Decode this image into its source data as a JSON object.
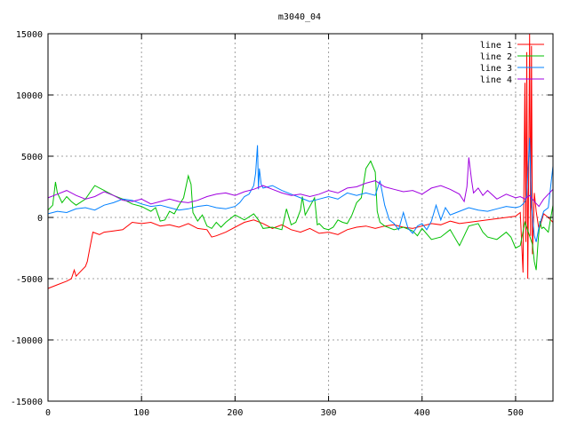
{
  "chart_data": {
    "type": "line",
    "title": "m3040_04",
    "xlabel": "",
    "ylabel": "",
    "xlim": [
      0,
      540
    ],
    "ylim": [
      -15000,
      15000
    ],
    "xticks": [
      0,
      100,
      200,
      300,
      400,
      500
    ],
    "yticks": [
      -15000,
      -10000,
      -5000,
      0,
      5000,
      10000,
      15000
    ],
    "grid": true,
    "legend_position": "top-right",
    "series": [
      {
        "name": "line 1",
        "color": "#ff0000",
        "points": [
          [
            0,
            -5800
          ],
          [
            10,
            -5500
          ],
          [
            20,
            -5200
          ],
          [
            25,
            -5000
          ],
          [
            28,
            -4300
          ],
          [
            30,
            -4800
          ],
          [
            35,
            -4400
          ],
          [
            40,
            -4000
          ],
          [
            42,
            -3600
          ],
          [
            45,
            -2400
          ],
          [
            48,
            -1200
          ],
          [
            55,
            -1400
          ],
          [
            60,
            -1200
          ],
          [
            70,
            -1100
          ],
          [
            80,
            -1000
          ],
          [
            90,
            -400
          ],
          [
            100,
            -500
          ],
          [
            110,
            -400
          ],
          [
            120,
            -700
          ],
          [
            130,
            -600
          ],
          [
            140,
            -800
          ],
          [
            150,
            -500
          ],
          [
            160,
            -900
          ],
          [
            170,
            -1000
          ],
          [
            175,
            -1600
          ],
          [
            180,
            -1500
          ],
          [
            190,
            -1200
          ],
          [
            200,
            -800
          ],
          [
            210,
            -400
          ],
          [
            220,
            -200
          ],
          [
            230,
            -500
          ],
          [
            240,
            -900
          ],
          [
            250,
            -600
          ],
          [
            260,
            -1000
          ],
          [
            270,
            -1200
          ],
          [
            280,
            -900
          ],
          [
            290,
            -1300
          ],
          [
            300,
            -1200
          ],
          [
            310,
            -1400
          ],
          [
            320,
            -1000
          ],
          [
            330,
            -800
          ],
          [
            340,
            -700
          ],
          [
            350,
            -900
          ],
          [
            360,
            -700
          ],
          [
            370,
            -600
          ],
          [
            380,
            -800
          ],
          [
            390,
            -900
          ],
          [
            400,
            -700
          ],
          [
            410,
            -500
          ],
          [
            420,
            -600
          ],
          [
            430,
            -300
          ],
          [
            440,
            -500
          ],
          [
            450,
            -400
          ],
          [
            460,
            -300
          ],
          [
            470,
            -200
          ],
          [
            480,
            -100
          ],
          [
            490,
            0
          ],
          [
            500,
            100
          ],
          [
            505,
            400
          ],
          [
            508,
            -4500
          ],
          [
            510,
            11000
          ],
          [
            511,
            -2000
          ],
          [
            512,
            13500
          ],
          [
            513,
            -5000
          ],
          [
            514,
            4000
          ],
          [
            515,
            15000
          ],
          [
            516,
            -1500
          ],
          [
            517,
            14000
          ],
          [
            518,
            -3000
          ],
          [
            520,
            2000
          ],
          [
            522,
            500
          ],
          [
            525,
            -1000
          ],
          [
            530,
            300
          ],
          [
            535,
            0
          ],
          [
            540,
            -400
          ]
        ]
      },
      {
        "name": "line 2",
        "color": "#00c000",
        "points": [
          [
            0,
            600
          ],
          [
            5,
            1000
          ],
          [
            8,
            2900
          ],
          [
            10,
            2000
          ],
          [
            15,
            1200
          ],
          [
            20,
            1700
          ],
          [
            25,
            1300
          ],
          [
            30,
            1000
          ],
          [
            40,
            1500
          ],
          [
            50,
            2600
          ],
          [
            60,
            2200
          ],
          [
            70,
            1800
          ],
          [
            80,
            1500
          ],
          [
            90,
            1100
          ],
          [
            100,
            900
          ],
          [
            110,
            500
          ],
          [
            115,
            800
          ],
          [
            120,
            -300
          ],
          [
            125,
            -200
          ],
          [
            130,
            500
          ],
          [
            135,
            300
          ],
          [
            140,
            1000
          ],
          [
            145,
            1600
          ],
          [
            150,
            3400
          ],
          [
            153,
            2700
          ],
          [
            155,
            400
          ],
          [
            160,
            -300
          ],
          [
            165,
            200
          ],
          [
            170,
            -700
          ],
          [
            175,
            -900
          ],
          [
            180,
            -400
          ],
          [
            185,
            -800
          ],
          [
            190,
            -400
          ],
          [
            200,
            200
          ],
          [
            210,
            -200
          ],
          [
            220,
            300
          ],
          [
            225,
            -200
          ],
          [
            230,
            -900
          ],
          [
            240,
            -800
          ],
          [
            250,
            -1000
          ],
          [
            255,
            700
          ],
          [
            260,
            -600
          ],
          [
            265,
            -400
          ],
          [
            270,
            600
          ],
          [
            272,
            1700
          ],
          [
            275,
            200
          ],
          [
            280,
            900
          ],
          [
            285,
            1600
          ],
          [
            288,
            -600
          ],
          [
            290,
            -500
          ],
          [
            295,
            -900
          ],
          [
            300,
            -1000
          ],
          [
            305,
            -800
          ],
          [
            310,
            -200
          ],
          [
            315,
            -400
          ],
          [
            320,
            -500
          ],
          [
            325,
            200
          ],
          [
            330,
            1200
          ],
          [
            335,
            1600
          ],
          [
            340,
            4000
          ],
          [
            345,
            4600
          ],
          [
            350,
            3700
          ],
          [
            352,
            500
          ],
          [
            355,
            -400
          ],
          [
            360,
            -700
          ],
          [
            370,
            -1000
          ],
          [
            380,
            -800
          ],
          [
            390,
            -1100
          ],
          [
            395,
            -1500
          ],
          [
            400,
            -900
          ],
          [
            410,
            -1800
          ],
          [
            420,
            -1600
          ],
          [
            430,
            -1000
          ],
          [
            440,
            -2300
          ],
          [
            445,
            -1500
          ],
          [
            450,
            -700
          ],
          [
            455,
            -600
          ],
          [
            460,
            -500
          ],
          [
            465,
            -1200
          ],
          [
            470,
            -1600
          ],
          [
            480,
            -1800
          ],
          [
            490,
            -1200
          ],
          [
            495,
            -1600
          ],
          [
            500,
            -2500
          ],
          [
            505,
            -2300
          ],
          [
            510,
            -400
          ],
          [
            515,
            -1500
          ],
          [
            518,
            -2200
          ],
          [
            520,
            -3600
          ],
          [
            522,
            -4300
          ],
          [
            524,
            -2000
          ],
          [
            526,
            -300
          ],
          [
            528,
            -900
          ],
          [
            530,
            -800
          ],
          [
            535,
            -1200
          ],
          [
            540,
            1000
          ]
        ]
      },
      {
        "name": "line 3",
        "color": "#0080ff",
        "points": [
          [
            0,
            300
          ],
          [
            10,
            500
          ],
          [
            20,
            400
          ],
          [
            30,
            700
          ],
          [
            40,
            800
          ],
          [
            50,
            600
          ],
          [
            60,
            1000
          ],
          [
            70,
            1200
          ],
          [
            80,
            1500
          ],
          [
            90,
            1400
          ],
          [
            100,
            1100
          ],
          [
            110,
            900
          ],
          [
            120,
            1000
          ],
          [
            130,
            800
          ],
          [
            140,
            600
          ],
          [
            150,
            700
          ],
          [
            160,
            900
          ],
          [
            170,
            1000
          ],
          [
            180,
            800
          ],
          [
            190,
            700
          ],
          [
            200,
            900
          ],
          [
            205,
            1200
          ],
          [
            210,
            1700
          ],
          [
            215,
            1900
          ],
          [
            220,
            2600
          ],
          [
            222,
            3600
          ],
          [
            224,
            5900
          ],
          [
            225,
            2300
          ],
          [
            226,
            4000
          ],
          [
            228,
            2700
          ],
          [
            230,
            2400
          ],
          [
            240,
            2600
          ],
          [
            250,
            2200
          ],
          [
            260,
            1900
          ],
          [
            270,
            1600
          ],
          [
            280,
            1300
          ],
          [
            290,
            1500
          ],
          [
            300,
            1700
          ],
          [
            310,
            1500
          ],
          [
            320,
            2000
          ],
          [
            330,
            1800
          ],
          [
            340,
            2000
          ],
          [
            350,
            1800
          ],
          [
            355,
            3000
          ],
          [
            360,
            1000
          ],
          [
            365,
            -200
          ],
          [
            370,
            -500
          ],
          [
            375,
            -1000
          ],
          [
            380,
            400
          ],
          [
            385,
            -900
          ],
          [
            390,
            -1300
          ],
          [
            395,
            -700
          ],
          [
            400,
            -500
          ],
          [
            405,
            -1000
          ],
          [
            410,
            -300
          ],
          [
            415,
            1000
          ],
          [
            420,
            -200
          ],
          [
            425,
            800
          ],
          [
            430,
            200
          ],
          [
            440,
            500
          ],
          [
            450,
            800
          ],
          [
            460,
            600
          ],
          [
            470,
            500
          ],
          [
            480,
            700
          ],
          [
            490,
            900
          ],
          [
            500,
            800
          ],
          [
            505,
            900
          ],
          [
            508,
            1100
          ],
          [
            510,
            1300
          ],
          [
            512,
            1800
          ],
          [
            515,
            6500
          ],
          [
            517,
            1000
          ],
          [
            520,
            -1500
          ],
          [
            522,
            -2000
          ],
          [
            525,
            -800
          ],
          [
            530,
            500
          ],
          [
            535,
            800
          ],
          [
            540,
            4200
          ]
        ]
      },
      {
        "name": "line 4",
        "color": "#a000e0",
        "points": [
          [
            0,
            1600
          ],
          [
            10,
            1900
          ],
          [
            20,
            2200
          ],
          [
            30,
            1800
          ],
          [
            40,
            1500
          ],
          [
            50,
            1700
          ],
          [
            60,
            2100
          ],
          [
            70,
            1800
          ],
          [
            80,
            1400
          ],
          [
            90,
            1300
          ],
          [
            100,
            1500
          ],
          [
            110,
            1100
          ],
          [
            120,
            1300
          ],
          [
            130,
            1500
          ],
          [
            140,
            1300
          ],
          [
            150,
            1200
          ],
          [
            160,
            1400
          ],
          [
            170,
            1700
          ],
          [
            180,
            1900
          ],
          [
            190,
            2000
          ],
          [
            200,
            1800
          ],
          [
            210,
            2100
          ],
          [
            220,
            2300
          ],
          [
            230,
            2600
          ],
          [
            240,
            2300
          ],
          [
            250,
            2000
          ],
          [
            260,
            1800
          ],
          [
            270,
            1900
          ],
          [
            280,
            1700
          ],
          [
            290,
            1900
          ],
          [
            300,
            2200
          ],
          [
            310,
            2000
          ],
          [
            320,
            2400
          ],
          [
            330,
            2500
          ],
          [
            340,
            2800
          ],
          [
            350,
            3000
          ],
          [
            360,
            2500
          ],
          [
            370,
            2300
          ],
          [
            380,
            2100
          ],
          [
            390,
            2200
          ],
          [
            400,
            1900
          ],
          [
            410,
            2400
          ],
          [
            420,
            2600
          ],
          [
            430,
            2300
          ],
          [
            440,
            1900
          ],
          [
            445,
            1300
          ],
          [
            448,
            2500
          ],
          [
            450,
            4900
          ],
          [
            453,
            3000
          ],
          [
            455,
            2000
          ],
          [
            460,
            2400
          ],
          [
            465,
            1800
          ],
          [
            470,
            2200
          ],
          [
            480,
            1500
          ],
          [
            490,
            1900
          ],
          [
            500,
            1600
          ],
          [
            505,
            1700
          ],
          [
            510,
            1500
          ],
          [
            515,
            1800
          ],
          [
            520,
            1300
          ],
          [
            525,
            900
          ],
          [
            530,
            1500
          ],
          [
            535,
            1900
          ],
          [
            540,
            2300
          ]
        ]
      }
    ]
  }
}
